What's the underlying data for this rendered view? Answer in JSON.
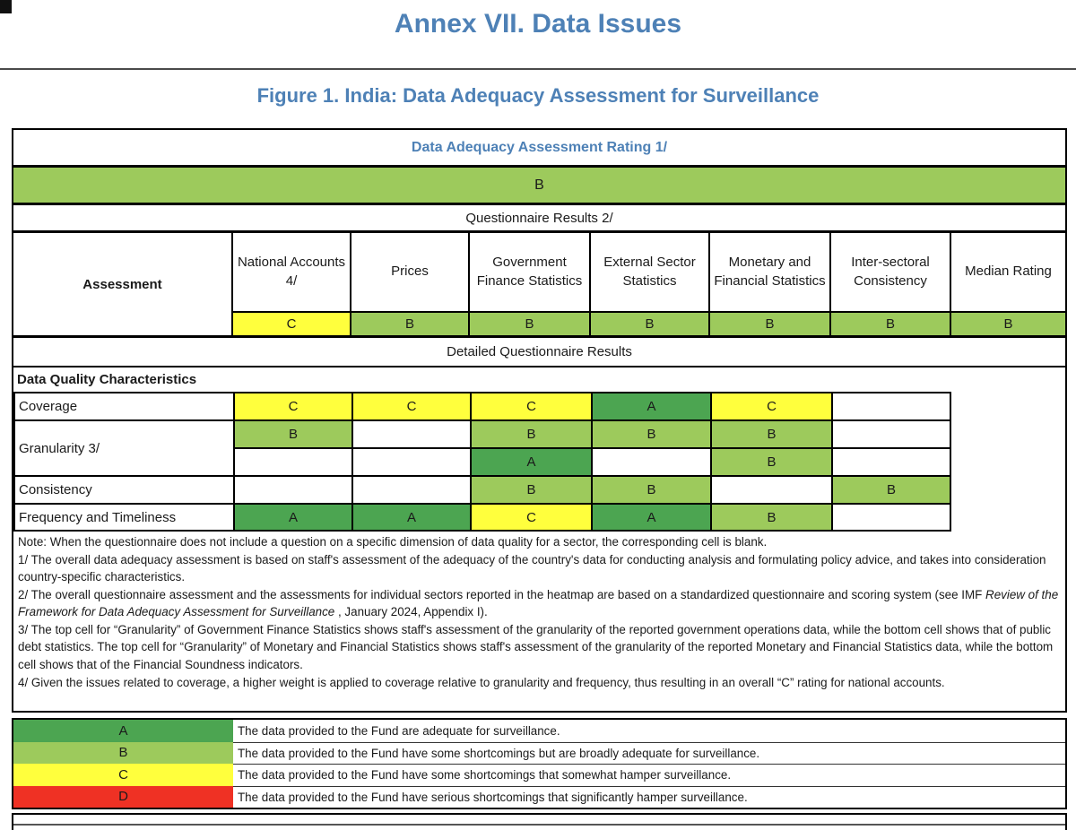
{
  "page": {
    "title": "Annex VII. Data Issues",
    "figure_title": "Figure 1. India: Data Adequacy Assessment for Surveillance"
  },
  "colors": {
    "A": "#4CA551",
    "B": "#9DCA5C",
    "C": "#FFFF3D",
    "D": "#EF3124",
    "heading_blue": "#4E81B6"
  },
  "table": {
    "overall_header": "Data Adequacy Assessment Rating 1/",
    "overall_rating": "B",
    "questionnaire_header": "Questionnaire Results 2/",
    "assessment_label": "Assessment",
    "columns": [
      "National Accounts 4/",
      "Prices",
      "Government Finance Statistics",
      "External Sector Statistics",
      "Monetary and Financial Statistics",
      "Inter-sectoral Consistency",
      "Median Rating"
    ],
    "sector_ratings": [
      "C",
      "B",
      "B",
      "B",
      "B",
      "B",
      "B"
    ],
    "detailed_header": "Detailed Questionnaire Results",
    "characteristics_label": "Data Quality Characteristics",
    "rows": [
      {
        "label": "Coverage",
        "cells": [
          "C",
          "C",
          "C",
          "A",
          "C",
          ""
        ]
      },
      {
        "label": "Granularity 3/",
        "cells_top": [
          "B",
          "",
          "B",
          "B",
          "B",
          ""
        ],
        "cells_bottom": [
          "",
          "",
          "A",
          "",
          "B",
          ""
        ]
      },
      {
        "label": "Consistency",
        "cells": [
          "",
          "",
          "B",
          "B",
          "",
          "B"
        ]
      },
      {
        "label": "Frequency and Timeliness",
        "cells": [
          "A",
          "A",
          "C",
          "A",
          "B",
          ""
        ]
      }
    ]
  },
  "notes": {
    "note": "Note: When the questionnaire does not include a question on a specific dimension of data quality for a sector, the corresponding cell is blank.",
    "fn1": "1/ The overall data adequacy assessment is based on staff's assessment of the adequacy of the country's data for conducting analysis and formulating policy advice, and takes into consideration country-specific characteristics.",
    "fn2_pre": "2/ The overall questionnaire assessment and the assessments for individual sectors reported in the heatmap are based on a standardized questionnaire and scoring system (see IMF ",
    "fn2_italic": "Review of the Framework for Data Adequacy Assessment for Surveillance",
    "fn2_post": " , January 2024, Appendix I).",
    "fn3": "3/ The top cell for “Granularity” of Government Finance Statistics shows staff's assessment of the granularity of the reported government operations data, while the bottom cell shows that of public debt statistics. The top cell for “Granularity” of Monetary and Financial Statistics shows staff's assessment of the granularity of the reported Monetary and Financial Statistics data, while the bottom cell shows that of the Financial Soundness indicators.",
    "fn4": "4/ Given the issues related to coverage, a higher weight is applied to coverage relative to granularity and frequency, thus resulting in an overall “C” rating for national accounts."
  },
  "legend": [
    {
      "grade": "A",
      "description": "The data provided to the Fund are adequate for surveillance."
    },
    {
      "grade": "B",
      "description": "The data provided to the Fund have some shortcomings but are broadly adequate for surveillance."
    },
    {
      "grade": "C",
      "description": "The data provided to the Fund have some shortcomings that somewhat hamper surveillance."
    },
    {
      "grade": "D",
      "description": "The data provided to the Fund have serious shortcomings that significantly hamper surveillance."
    }
  ]
}
